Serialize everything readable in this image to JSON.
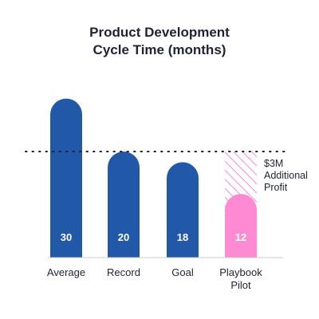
{
  "chart_data": {
    "type": "bar",
    "title_lines": [
      "Product Development",
      "Cycle Time (months)"
    ],
    "categories": [
      "Average",
      "Record",
      "Goal",
      "Playbook\nPilot"
    ],
    "values": [
      30,
      20,
      18,
      12
    ],
    "data_labels": [
      "30",
      "20",
      "18",
      "12"
    ],
    "ylim": [
      0,
      34
    ],
    "reference_line": {
      "value": 20,
      "style": "dotted"
    },
    "annotation": [
      "$3M",
      "Additional",
      "Profit"
    ],
    "highlight_index": 3,
    "colors": {
      "bar": "#2158a8",
      "highlight": "#ff8ad4",
      "hatch": "#ff8ad4",
      "text": "#1f2333",
      "label": "#ffffff",
      "axis": "#cccccc"
    },
    "grid": false,
    "legend": "none"
  }
}
